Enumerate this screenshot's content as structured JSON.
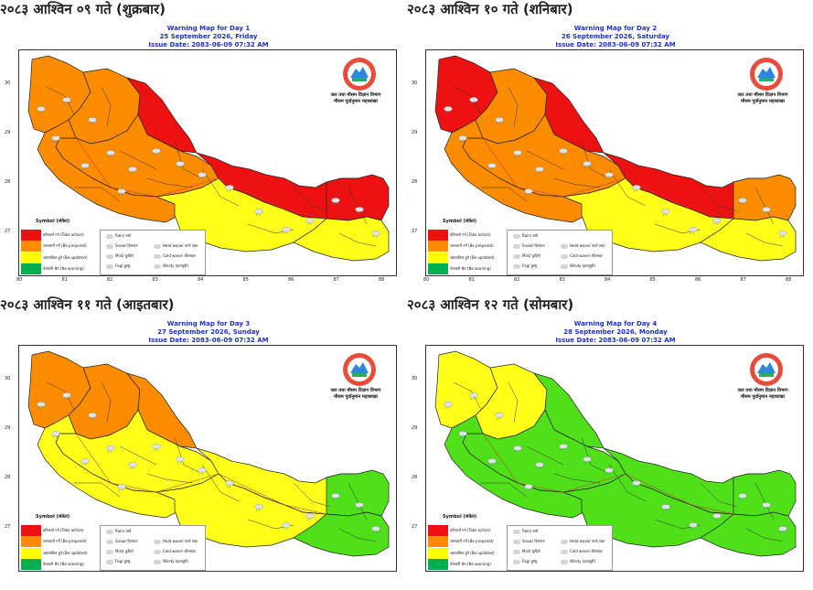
{
  "panels": [
    {
      "heading": "२०८३ आश्विन ०९ गते (शुक्रबार)",
      "title_line1": "Warning Map for Day 1",
      "title_line2": "25 September 2026, Friday",
      "title_line3": "Issue Date: 2083-06-09 07:32 AM",
      "zones": {
        "far_west": "orange",
        "mid_west": "orange",
        "karnali_north": "red",
        "center_west": "orange",
        "south_west": "orange",
        "central_north": "red",
        "central_south": "yellow",
        "east_north": "red",
        "east_south": "yellow"
      }
    },
    {
      "heading": "२०८३ आश्विन १० गते (शनिबार)",
      "title_line1": "Warning Map for Day 2",
      "title_line2": "26 September 2026, Saturday",
      "title_line3": "Issue Date: 2083-06-09 07:32 AM",
      "zones": {
        "far_west": "red",
        "mid_west": "orange",
        "karnali_north": "red",
        "center_west": "orange",
        "south_west": "orange",
        "central_north": "red",
        "central_south": "yellow",
        "east_north": "orange",
        "east_south": "yellow"
      }
    },
    {
      "heading": "२०८३ आश्विन ११ गते (आइतबार)",
      "title_line1": "Warning Map for Day 3",
      "title_line2": "27 September 2026, Sunday",
      "title_line3": "Issue Date: 2083-06-09 07:32 AM",
      "zones": {
        "far_west": "orange",
        "mid_west": "orange",
        "karnali_north": "orange",
        "center_west": "yellow",
        "south_west": "yellow",
        "central_north": "yellow",
        "central_south": "yellow",
        "east_north": "green",
        "east_south": "green"
      }
    },
    {
      "heading": "२०८३ आश्विन १२ गते (सोमबार)",
      "title_line1": "Warning Map for Day 4",
      "title_line2": "28 September 2026, Monday",
      "title_line3": "Issue Date: 2083-06-09 07:32 AM",
      "zones": {
        "far_west": "yellow",
        "mid_west": "yellow",
        "karnali_north": "green",
        "center_west": "green",
        "south_west": "green",
        "central_north": "green",
        "central_south": "green",
        "east_north": "green",
        "east_south": "green"
      }
    }
  ],
  "dept_line1": "जल तथा मौसम विज्ञान विभाग",
  "dept_line2": "मौसम पूर्वानुमान महाशाखा",
  "y_ticks": [
    "30",
    "29",
    "28",
    "27"
  ],
  "x_ticks": [
    "80",
    "81",
    "82",
    "83",
    "84",
    "85",
    "86",
    "87",
    "88"
  ],
  "legend_title": "Symbol (संकेत)",
  "legend": [
    {
      "label": "प्रतिकार्य गर्न (Take action)",
      "color": "#ee1111"
    },
    {
      "label": "जानकारी गर्ने (Be prepared)",
      "color": "#ff8c00"
    },
    {
      "label": "अद्यावधिक हुने (Be updated)",
      "color": "#ffff00"
    },
    {
      "label": "चेतावनी छैन (No warning)",
      "color": "#00b050"
    }
  ],
  "symbols": [
    "Rain/ वर्षा",
    "Snow/ हिमपात",
    "Heat wave/ तातो लहर",
    "Mist/ कुहिरो",
    "Cold wave/ शीतलहर",
    "Fog/ हुस्सु",
    "Windy (हावाहुरी)"
  ],
  "colors": {
    "red": "#ee1111",
    "orange": "#fb8c00",
    "yellow": "#ffff1a",
    "green": "#4fe01a"
  }
}
